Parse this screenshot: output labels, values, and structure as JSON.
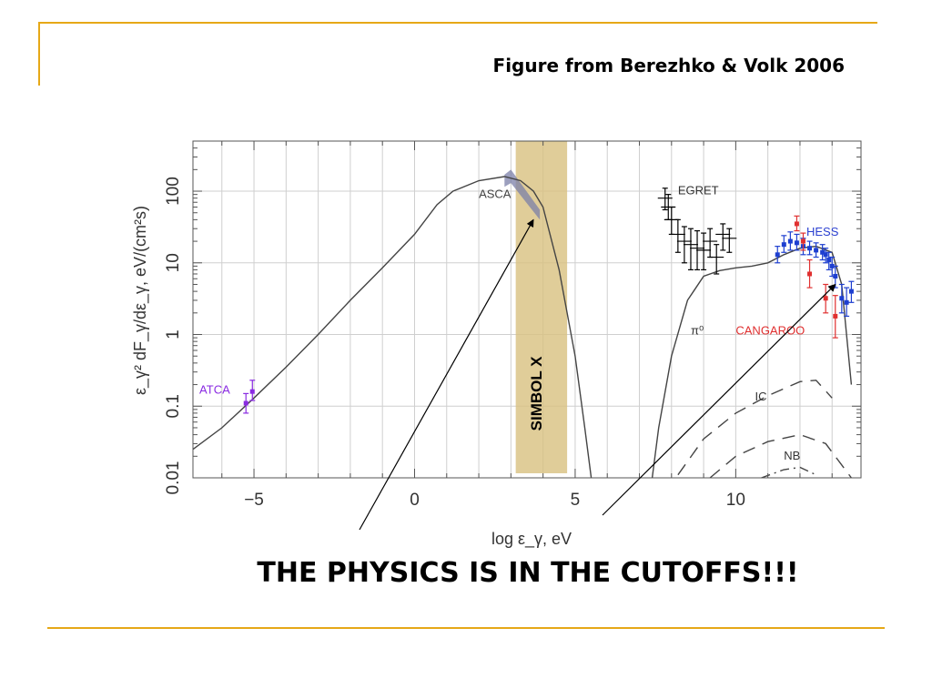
{
  "slide": {
    "caption": "Figure from Berezhko & Volk 2006",
    "headline": "THE PHYSICS IS IN THE CUTOFFS!!!",
    "band_label": "SIMBOL X",
    "accent_color": "#e6a817",
    "band_color": "#d8c080"
  },
  "chart_data": {
    "type": "line",
    "title": "",
    "xlabel": "log ε_γ, eV",
    "ylabel": "ε_γ² dF_γ/dε_γ,  eV/(cm²s)",
    "xlim": [
      -6.9,
      13.9
    ],
    "ylim": [
      0.01,
      500
    ],
    "y_scale": "log",
    "grid": true,
    "x_ticks": [
      {
        "value": -5,
        "label": "−5"
      },
      {
        "value": 0,
        "label": "0"
      },
      {
        "value": 5,
        "label": "5"
      },
      {
        "value": 10,
        "label": "10"
      }
    ],
    "y_ticks": [
      {
        "value": 0.01,
        "label": "0.01"
      },
      {
        "value": 0.1,
        "label": "0.1"
      },
      {
        "value": 1,
        "label": "1"
      },
      {
        "value": 10,
        "label": "10"
      },
      {
        "value": 100,
        "label": "100"
      }
    ],
    "series": [
      {
        "key": "sync",
        "style": "solid",
        "color": "#444444",
        "x": [
          -6.9,
          -6,
          -5,
          -4,
          -3,
          -2,
          -1,
          0,
          0.7,
          1.2,
          2,
          2.8,
          3.3,
          3.7,
          4,
          4.5,
          5,
          5.3,
          5.5
        ],
        "y": [
          0.025,
          0.05,
          0.13,
          0.35,
          1.0,
          3.0,
          8.5,
          25,
          65,
          100,
          140,
          160,
          140,
          100,
          60,
          8,
          0.5,
          0.05,
          0.01
        ]
      },
      {
        "key": "pion",
        "style": "solid",
        "color": "#444444",
        "x": [
          7.4,
          7.6,
          8,
          8.5,
          9,
          9.5,
          10,
          10.5,
          11,
          11.5,
          12,
          12.5,
          13,
          13.3,
          13.6
        ],
        "y": [
          0.01,
          0.05,
          0.5,
          3,
          6.5,
          7.8,
          8.5,
          9,
          10,
          13,
          16,
          17,
          14,
          5,
          0.2
        ]
      },
      {
        "key": "ic",
        "style": "dashed",
        "color": "#444444",
        "x": [
          8.2,
          9,
          10,
          11,
          12,
          12.5,
          13
        ],
        "y": [
          0.011,
          0.035,
          0.08,
          0.14,
          0.22,
          0.23,
          0.13
        ]
      },
      {
        "key": "nb",
        "style": "dashed",
        "color": "#444444",
        "x": [
          9.2,
          10,
          11,
          12,
          12.8,
          13.6
        ],
        "y": [
          0.01,
          0.02,
          0.032,
          0.04,
          0.03,
          0.01
        ]
      },
      {
        "key": "nb2",
        "style": "dashdot",
        "color": "#444444",
        "x": [
          10.8,
          11.5,
          12,
          12.5
        ],
        "y": [
          0.01,
          0.013,
          0.014,
          0.011
        ]
      }
    ],
    "labels": [
      {
        "key": "asca",
        "text": "ASCA",
        "x": 2.0,
        "y": 80,
        "color": "#444444"
      },
      {
        "key": "egret",
        "text": "EGRET",
        "x": 8.2,
        "y": 90,
        "color": "#333333"
      },
      {
        "key": "hess",
        "text": "HESS",
        "x": 12.2,
        "y": 24,
        "color": "#2a3fd0"
      },
      {
        "key": "cangaroo",
        "text": "CANGAROO",
        "x": 10.0,
        "y": 1.0,
        "color": "#e03030"
      },
      {
        "key": "atca",
        "text": "ATCA",
        "x": -6.7,
        "y": 0.15,
        "color": "#8a2be2"
      },
      {
        "key": "pi0",
        "text": "π⁰",
        "x": 8.6,
        "y": 1.0,
        "color": "#333333"
      },
      {
        "key": "ic",
        "text": "IC",
        "x": 10.6,
        "y": 0.12,
        "color": "#333333"
      },
      {
        "key": "nb",
        "text": "NB",
        "x": 11.5,
        "y": 0.018,
        "color": "#333333"
      }
    ],
    "points": {
      "atca": {
        "color": "#8a2be2",
        "x": [
          -5.25,
          -5.05
        ],
        "y": [
          0.11,
          0.16
        ],
        "err": [
          [
            0.08,
            0.15
          ],
          [
            0.12,
            0.23
          ]
        ]
      },
      "egret": {
        "color": "#000000",
        "x": [
          7.8,
          7.9,
          8.0,
          8.2,
          8.4,
          8.6,
          8.8,
          9.0,
          9.2,
          9.4,
          9.6,
          9.8
        ],
        "y": [
          80,
          60,
          40,
          25,
          20,
          18,
          16,
          15,
          20,
          12,
          25,
          22
        ],
        "err": [
          [
            55,
            110
          ],
          [
            40,
            90
          ],
          [
            25,
            60
          ],
          [
            14,
            40
          ],
          [
            10,
            32
          ],
          [
            8,
            30
          ],
          [
            8,
            28
          ],
          [
            8,
            26
          ],
          [
            12,
            30
          ],
          [
            7,
            18
          ],
          [
            15,
            35
          ],
          [
            14,
            30
          ]
        ]
      },
      "hess": {
        "color": "#1e3fd0",
        "x": [
          11.3,
          11.5,
          11.7,
          11.9,
          12.1,
          12.3,
          12.5,
          12.7,
          12.8,
          12.9,
          13.0,
          13.1,
          13.3,
          13.45,
          13.6
        ],
        "y": [
          13,
          18,
          20,
          19,
          17,
          16,
          15,
          14,
          13,
          11,
          9,
          6.5,
          3.2,
          2.8,
          4.0
        ],
        "err": [
          [
            10,
            17
          ],
          [
            14,
            24
          ],
          [
            15,
            27
          ],
          [
            15,
            25
          ],
          [
            13,
            22
          ],
          [
            13,
            20
          ],
          [
            12,
            19
          ],
          [
            11,
            18
          ],
          [
            10,
            16
          ],
          [
            8,
            14
          ],
          [
            6.5,
            12
          ],
          [
            4.5,
            9
          ],
          [
            2,
            5
          ],
          [
            1.8,
            4.5
          ],
          [
            2.8,
            5.5
          ]
        ]
      },
      "cangaroo": {
        "color": "#e03030",
        "x": [
          11.9,
          12.1,
          12.3,
          12.8,
          13.1
        ],
        "y": [
          35,
          20,
          7,
          3.2,
          1.8
        ],
        "err": [
          [
            28,
            45
          ],
          [
            15,
            26
          ],
          [
            4.5,
            11
          ],
          [
            2.0,
            5
          ],
          [
            0.9,
            3.5
          ]
        ]
      }
    }
  }
}
